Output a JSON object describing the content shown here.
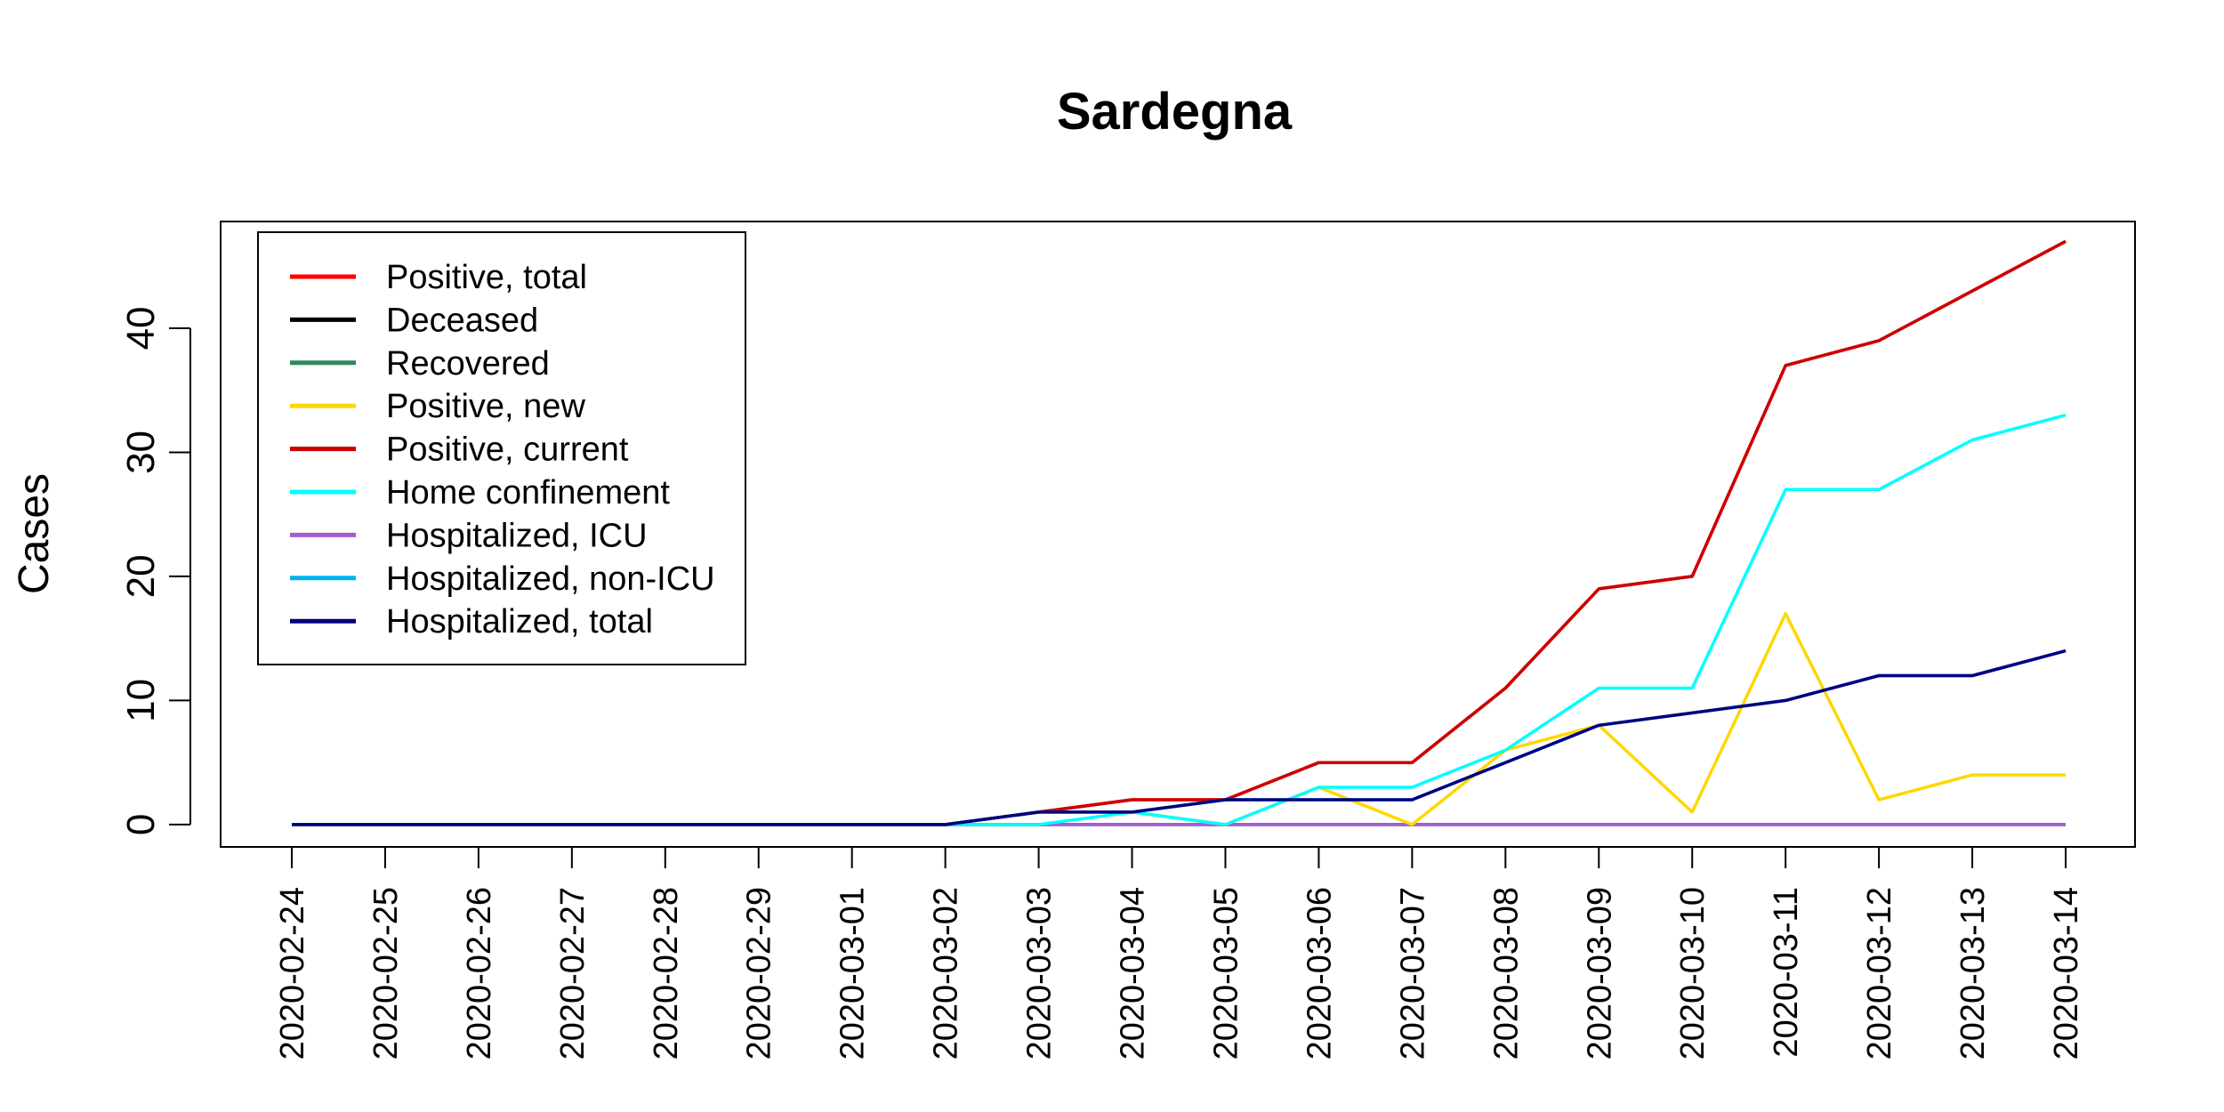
{
  "chart_data": {
    "type": "line",
    "title": "Sardegna",
    "xlabel": "",
    "ylabel": "Cases",
    "x": [
      "2020-02-24",
      "2020-02-25",
      "2020-02-26",
      "2020-02-27",
      "2020-02-28",
      "2020-02-29",
      "2020-03-01",
      "2020-03-02",
      "2020-03-03",
      "2020-03-04",
      "2020-03-05",
      "2020-03-06",
      "2020-03-07",
      "2020-03-08",
      "2020-03-09",
      "2020-03-10",
      "2020-03-11",
      "2020-03-12",
      "2020-03-13",
      "2020-03-14"
    ],
    "ylim": [
      -1.8,
      48.6
    ],
    "yticks": [
      0,
      10,
      20,
      30,
      40
    ],
    "grid": false,
    "legend_position": "top-left",
    "series": [
      {
        "name": "Positive, total",
        "color": "#ff0000",
        "values": [
          0,
          0,
          0,
          0,
          0,
          0,
          0,
          0,
          1,
          2,
          2,
          5,
          5,
          11,
          19,
          20,
          37,
          39,
          43,
          47
        ]
      },
      {
        "name": "Deceased",
        "color": "#000000",
        "values": [
          0,
          0,
          0,
          0,
          0,
          0,
          0,
          0,
          0,
          0,
          0,
          0,
          0,
          0,
          0,
          0,
          0,
          0,
          0,
          0
        ]
      },
      {
        "name": "Recovered",
        "color": "#2e8b57",
        "values": [
          0,
          0,
          0,
          0,
          0,
          0,
          0,
          0,
          0,
          0,
          0,
          0,
          0,
          0,
          0,
          0,
          0,
          0,
          0,
          0
        ]
      },
      {
        "name": "Positive, new",
        "color": "#ffd700",
        "values": [
          0,
          0,
          0,
          0,
          0,
          0,
          0,
          0,
          1,
          1,
          0,
          3,
          0,
          6,
          8,
          1,
          17,
          2,
          4,
          4
        ]
      },
      {
        "name": "Positive, current",
        "color": "#cd0000",
        "values": [
          0,
          0,
          0,
          0,
          0,
          0,
          0,
          0,
          1,
          2,
          2,
          5,
          5,
          11,
          19,
          20,
          37,
          39,
          43,
          47
        ]
      },
      {
        "name": "Home confinement",
        "color": "#00ffff",
        "values": [
          0,
          0,
          0,
          0,
          0,
          0,
          0,
          0,
          0,
          1,
          0,
          3,
          3,
          6,
          11,
          11,
          27,
          27,
          31,
          33
        ]
      },
      {
        "name": "Hospitalized, ICU",
        "color": "#a35cd0",
        "values": [
          0,
          0,
          0,
          0,
          0,
          0,
          0,
          0,
          0,
          0,
          0,
          0,
          0,
          0,
          0,
          0,
          0,
          0,
          0,
          0
        ]
      },
      {
        "name": "Hospitalized, non-ICU",
        "color": "#00b2ee",
        "values": [
          0,
          0,
          0,
          0,
          0,
          0,
          0,
          0,
          1,
          1,
          2,
          2,
          2,
          5,
          8,
          9,
          10,
          12,
          12,
          14
        ]
      },
      {
        "name": "Hospitalized, total",
        "color": "#000080",
        "values": [
          0,
          0,
          0,
          0,
          0,
          0,
          0,
          0,
          1,
          1,
          2,
          2,
          2,
          5,
          8,
          9,
          10,
          12,
          12,
          14
        ]
      }
    ],
    "draw_order": [
      0,
      1,
      2,
      6,
      3,
      5,
      4,
      7,
      8
    ]
  }
}
